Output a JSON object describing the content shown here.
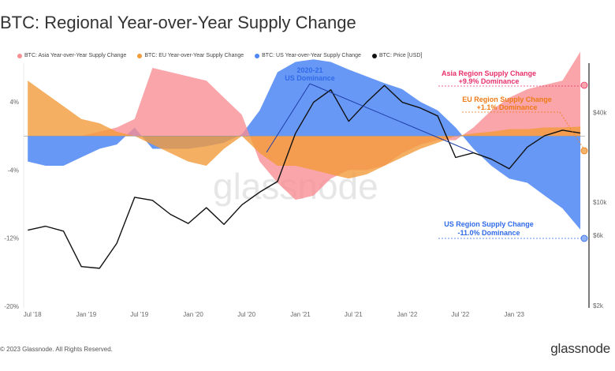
{
  "title": "BTC: Regional Year-over-Year Supply Change",
  "footer": {
    "copyright": "© 2023 Glassnode. All Rights Reserved.",
    "brand": "glassnode"
  },
  "watermark": "glassnode",
  "colors": {
    "asia": "#f78f93",
    "eu": "#f29b3b",
    "us": "#4e86f5",
    "price": "#111111",
    "asia_text": "#e8306b",
    "eu_text": "#ee7a16",
    "us_text": "#2f6ae8"
  },
  "legend": [
    {
      "name": "BTC: Asia Year-over-Year Supply Change",
      "color": "#f78f93"
    },
    {
      "name": "BTC: EU Year-over-Year Supply Change",
      "color": "#f29b3b"
    },
    {
      "name": "BTC: US Year-over-Year Supply Change",
      "color": "#4e86f5"
    },
    {
      "name": "BTC: Price [USD]",
      "color": "#111111"
    }
  ],
  "annotations": {
    "us_dom_line1": "2020-21",
    "us_dom_line2": "US Dominance",
    "asia_line1": "Asia Region Supply Change",
    "asia_line2": "+9.9% Dominance",
    "eu_line1": "EU Region Supply Change",
    "eu_line2": "+1.1% Dominance",
    "us_line1": "US Region Supply Change",
    "us_line2": "-11.0% Dominance"
  },
  "chart_data": {
    "type": "area",
    "x_ticks": [
      "Jul '18",
      "Jan '19",
      "Jul '19",
      "Jan '20",
      "Jul '20",
      "Jan '21",
      "Jul '21",
      "Jan '22",
      "Jul '22",
      "Jan '23"
    ],
    "y_left_ticks": [
      "4%",
      "-4%",
      "-12%",
      "-20%"
    ],
    "y_left_range": [
      -20,
      8
    ],
    "y_right_ticks": [
      "$40k",
      "$10k",
      "$6k",
      "$2k"
    ],
    "y_right_scale": "log",
    "x": [
      "2018-06",
      "2018-08",
      "2018-10",
      "2018-12",
      "2019-02",
      "2019-04",
      "2019-06",
      "2019-08",
      "2019-10",
      "2019-12",
      "2020-02",
      "2020-04",
      "2020-06",
      "2020-08",
      "2020-10",
      "2020-12",
      "2021-02",
      "2021-04",
      "2021-06",
      "2021-08",
      "2021-10",
      "2021-12",
      "2022-02",
      "2022-04",
      "2022-06",
      "2022-08",
      "2022-10",
      "2022-12",
      "2023-02",
      "2023-04",
      "2023-06",
      "2023-08"
    ],
    "series": [
      {
        "name": "BTC: Asia Year-over-Year Supply Change",
        "values": [
          0,
          0,
          0,
          0,
          0.5,
          1,
          2,
          8,
          7.5,
          7,
          6.5,
          4.5,
          2.5,
          -3,
          -5.5,
          -7.5,
          -7,
          -5,
          -4,
          -4,
          -3.5,
          -2,
          -1,
          -0.5,
          -0.5,
          1,
          3,
          4.5,
          5.5,
          6,
          6.5,
          9.9
        ]
      },
      {
        "name": "BTC: EU Year-over-Year Supply Change",
        "values": [
          6.5,
          5,
          3.5,
          2,
          1.5,
          0.5,
          0,
          -1,
          -2,
          -3,
          -3.5,
          -1.5,
          0,
          -2,
          -3.5,
          -3.5,
          -4,
          -4.5,
          -5,
          -4.5,
          -3.5,
          -2.5,
          -1.5,
          -0.8,
          0,
          0.3,
          0.5,
          0.8,
          0.8,
          1,
          1,
          1.1
        ]
      },
      {
        "name": "BTC: US Year-over-Year Supply Change",
        "values": [
          -3,
          -3.5,
          -3.5,
          -2.5,
          -1.5,
          -1,
          1,
          -1.5,
          -1.5,
          -1.5,
          -1.2,
          -0.8,
          0.2,
          3,
          7.5,
          8.7,
          9,
          8.7,
          7.8,
          7,
          6.2,
          5.5,
          4,
          3,
          1,
          -1.5,
          -3.5,
          -5,
          -5.5,
          -7,
          -8.5,
          -11
        ]
      },
      {
        "name": "BTC: Price [USD]",
        "values": [
          6500,
          6900,
          6400,
          3700,
          3600,
          5300,
          10800,
          10300,
          8300,
          7200,
          9200,
          7100,
          9600,
          11700,
          13800,
          29000,
          47000,
          57000,
          35000,
          47000,
          61000,
          47000,
          43000,
          38000,
          20000,
          21500,
          19500,
          16800,
          23500,
          28000,
          30500,
          29200
        ]
      }
    ]
  }
}
